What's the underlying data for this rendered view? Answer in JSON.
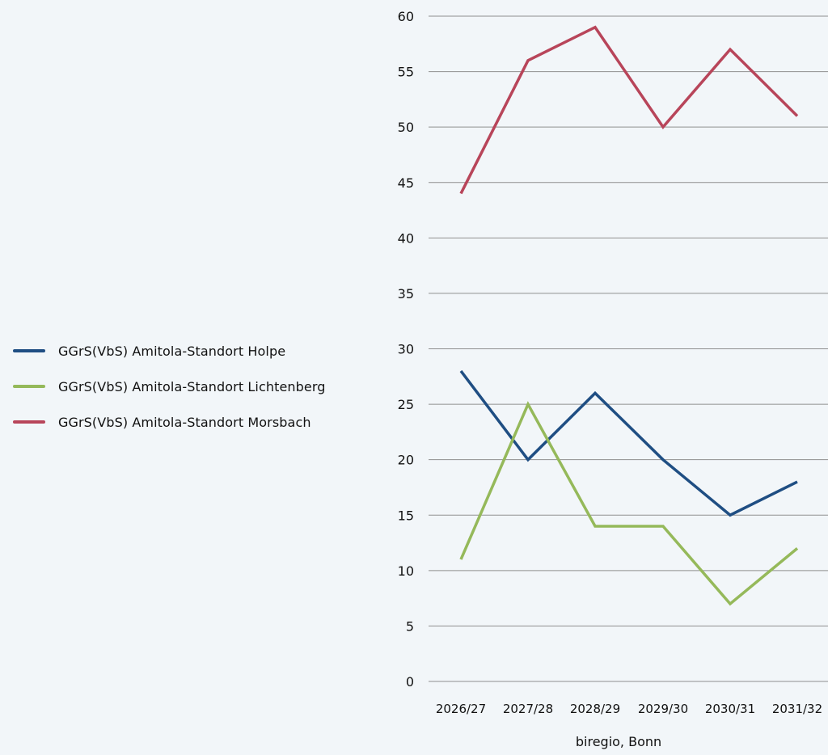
{
  "chart_data": {
    "type": "line",
    "categories": [
      "2026/27",
      "2027/28",
      "2028/29",
      "2029/30",
      "2030/31",
      "2031/32"
    ],
    "ylim": [
      0,
      60
    ],
    "yticks": [
      0,
      5,
      10,
      15,
      20,
      25,
      30,
      35,
      40,
      45,
      50,
      55,
      60
    ],
    "grid": true,
    "legend_position": "left",
    "series": [
      {
        "name": "GGrS(VbS) Amitola-Standort Holpe",
        "color": "#1f4e83",
        "values": [
          28,
          20,
          26,
          20,
          15,
          18
        ]
      },
      {
        "name": "GGrS(VbS) Amitola-Standort Lichtenberg",
        "color": "#95b95a",
        "values": [
          11,
          25,
          14,
          14,
          7,
          12
        ]
      },
      {
        "name": "GGrS(VbS) Amitola-Standort Morsbach",
        "color": "#b8455a",
        "values": [
          44,
          56,
          59,
          50,
          57,
          51
        ]
      }
    ],
    "source": "biregio, Bonn"
  }
}
